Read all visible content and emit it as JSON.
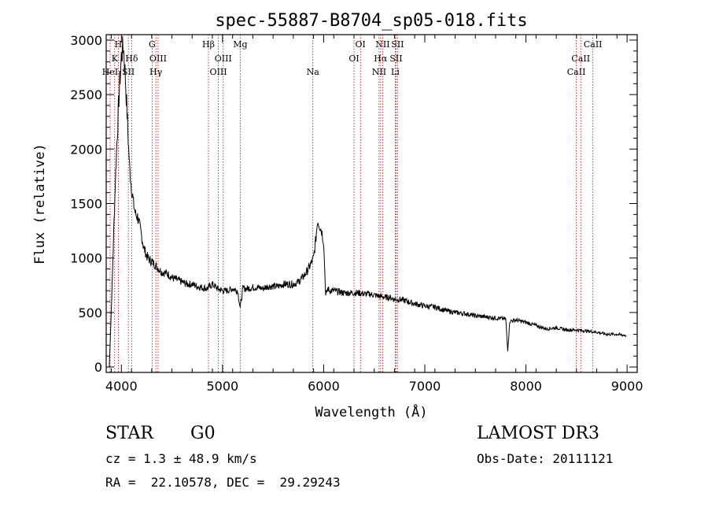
{
  "chart_data": {
    "type": "line",
    "title": "spec-55887-B8704_sp05-018.fits",
    "xlabel": "Wavelength (Å)",
    "ylabel": "Flux (relative)",
    "xlim": [
      3850,
      9100
    ],
    "ylim": [
      -50,
      3050
    ],
    "x_ticks": [
      4000,
      5000,
      6000,
      7000,
      8000,
      9000
    ],
    "y_ticks": [
      0,
      500,
      1000,
      1500,
      2000,
      2500,
      3000
    ],
    "series": [
      {
        "name": "flux",
        "color": "#000000",
        "x": [
          3880,
          3900,
          3920,
          3940,
          3960,
          3980,
          4000,
          4020,
          4040,
          4060,
          4080,
          4100,
          4120,
          4140,
          4160,
          4180,
          4200,
          4220,
          4250,
          4280,
          4300,
          4350,
          4400,
          4450,
          4500,
          4550,
          4600,
          4650,
          4700,
          4750,
          4800,
          4850,
          4900,
          4950,
          5000,
          5050,
          5100,
          5150,
          5175,
          5200,
          5250,
          5300,
          5350,
          5400,
          5450,
          5500,
          5550,
          5600,
          5650,
          5700,
          5750,
          5800,
          5850,
          5900,
          5920,
          5940,
          5960,
          5980,
          6000,
          6020,
          6040,
          6060,
          6100,
          6150,
          6200,
          6250,
          6300,
          6350,
          6400,
          6450,
          6500,
          6550,
          6600,
          6650,
          6700,
          6750,
          6800,
          6900,
          7000,
          7100,
          7200,
          7300,
          7400,
          7500,
          7600,
          7700,
          7800,
          7820,
          7840,
          7900,
          8000,
          8100,
          8200,
          8300,
          8400,
          8500,
          8600,
          8700,
          8800,
          8900,
          8990
        ],
        "y": [
          0,
          500,
          1100,
          1700,
          2150,
          2550,
          2850,
          2950,
          2650,
          2250,
          1850,
          1650,
          1500,
          1400,
          1380,
          1300,
          1200,
          1100,
          1020,
          980,
          970,
          920,
          870,
          860,
          820,
          800,
          780,
          760,
          760,
          740,
          730,
          720,
          760,
          720,
          700,
          700,
          720,
          700,
          540,
          720,
          720,
          730,
          730,
          720,
          740,
          740,
          740,
          760,
          760,
          760,
          780,
          830,
          900,
          1000,
          1150,
          1350,
          1300,
          1250,
          1150,
          650,
          720,
          700,
          700,
          690,
          680,
          680,
          680,
          680,
          670,
          670,
          660,
          650,
          640,
          640,
          620,
          620,
          610,
          580,
          560,
          550,
          520,
          500,
          490,
          470,
          460,
          450,
          440,
          150,
          420,
          430,
          410,
          380,
          350,
          360,
          340,
          340,
          330,
          320,
          300,
          300,
          290
        ]
      }
    ],
    "line_color": "#cc0000",
    "lines": [
      {
        "label": "H",
        "wavelength": 3970,
        "row": 1
      },
      {
        "label": "K",
        "wavelength": 3934,
        "row": 2
      },
      {
        "label": "HeI",
        "wavelength": 3889,
        "row": 3
      },
      {
        "label": "SII",
        "wavelength": 4069,
        "row": 3
      },
      {
        "label": "Hδ",
        "wavelength": 4102,
        "row": 2
      },
      {
        "label": "G",
        "wavelength": 4304,
        "row": 1
      },
      {
        "label": "OIII",
        "wavelength": 4363,
        "row": 2
      },
      {
        "label": "Hγ",
        "wavelength": 4341,
        "row": 3
      },
      {
        "label": "Hβ",
        "wavelength": 4861,
        "row": 1
      },
      {
        "label": "OIII",
        "wavelength": 5007,
        "row": 2
      },
      {
        "label": "OIII",
        "wavelength": 4959,
        "row": 3
      },
      {
        "label": "Mg",
        "wavelength": 5175,
        "row": 1
      },
      {
        "label": "Na",
        "wavelength": 5893,
        "row": 3
      },
      {
        "label": "OI",
        "wavelength": 6364,
        "row": 1
      },
      {
        "label": "OI",
        "wavelength": 6300,
        "row": 2
      },
      {
        "label": "NII",
        "wavelength": 6583,
        "row": 1
      },
      {
        "label": "Hα",
        "wavelength": 6563,
        "row": 2
      },
      {
        "label": "NII",
        "wavelength": 6548,
        "row": 3
      },
      {
        "label": "SII",
        "wavelength": 6731,
        "row": 1
      },
      {
        "label": "SII",
        "wavelength": 6716,
        "row": 2
      },
      {
        "label": "Li",
        "wavelength": 6708,
        "row": 3
      },
      {
        "label": "CaII",
        "wavelength": 8662,
        "row": 1
      },
      {
        "label": "CaII",
        "wavelength": 8542,
        "row": 2
      },
      {
        "label": "CaII",
        "wavelength": 8498,
        "row": 3
      }
    ]
  },
  "footer": {
    "object_class": "STAR",
    "subclass": "G0",
    "cz_text": "cz = 1.3 ± 48.9 km/s",
    "radec_text": "RA =  22.10578, DEC =  29.29243",
    "survey": "LAMOST DR3",
    "obs_date_text": "Obs-Date: 20111121"
  }
}
